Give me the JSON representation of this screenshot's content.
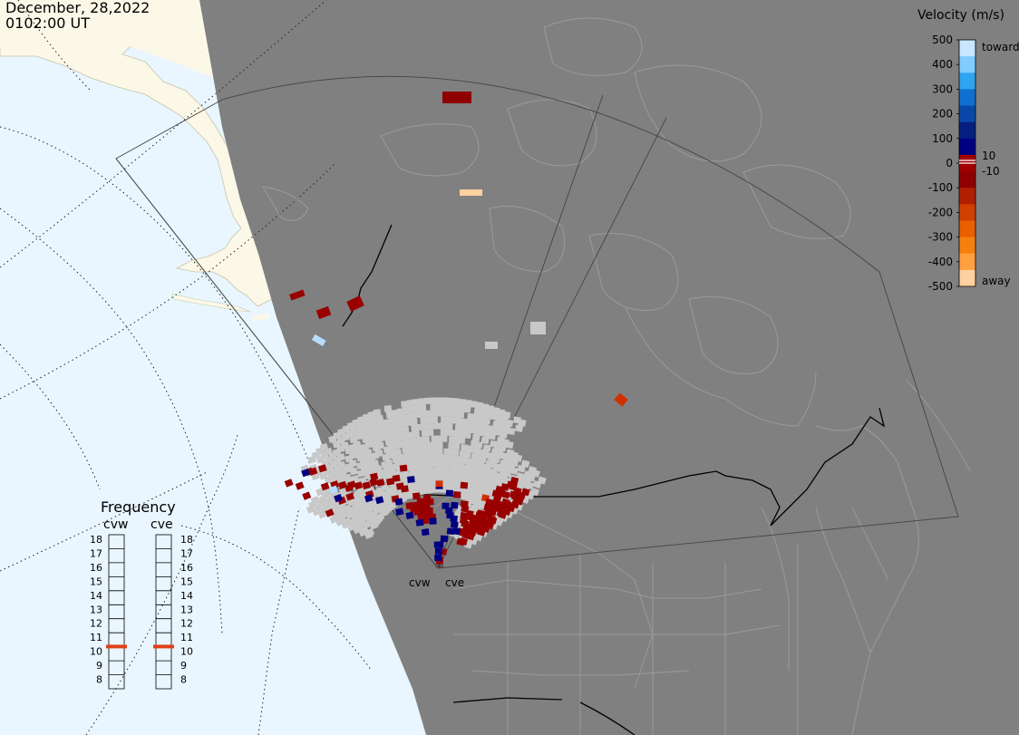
{
  "header": {
    "date": "December, 28,2022",
    "time": "0102:00 UT"
  },
  "colors": {
    "ocean": "#e9f6ff",
    "land_day": "#fbf8e8",
    "night": "#808080",
    "boundary": "#9a9a9a",
    "fov": "#555555",
    "ground_scatter": "#c8c8c8",
    "freq_marker": "#e0401a"
  },
  "velocity_scale": {
    "title": "Velocity (m/s)",
    "ticks": [
      "500",
      "400",
      "300",
      "200",
      "100",
      "0",
      "-100",
      "-200",
      "-300",
      "-400",
      "-500"
    ],
    "toward_label": "toward",
    "away_label": "away",
    "pos_threshold": "10",
    "neg_threshold": "-10",
    "colors": [
      "#c8e6ff",
      "#80ccff",
      "#2fa4ef",
      "#1070d0",
      "#0a48a8",
      "#06207f",
      "#000080",
      "#a00000",
      "#8f0000",
      "#b02000",
      "#d04000",
      "#e86000",
      "#f48010",
      "#ffa040",
      "#ffd0a0"
    ]
  },
  "frequency": {
    "title": "Frequency",
    "radars": [
      "cvw",
      "cve"
    ],
    "ticks": [
      "18",
      "17",
      "16",
      "15",
      "14",
      "13",
      "12",
      "11",
      "10",
      "9",
      "8"
    ],
    "values_mhz": [
      10.8,
      10.8
    ]
  },
  "radar_sites": [
    "cvw",
    "cve"
  ],
  "velocity_cells": {
    "neg": [
      [
        -62,
        -138
      ],
      [
        -60,
        -148
      ],
      [
        -61,
        -158
      ],
      [
        -54,
        -148
      ],
      [
        -53,
        -145
      ],
      [
        -50,
        -140
      ],
      [
        -64,
        -112
      ],
      [
        -55,
        -128
      ],
      [
        -52,
        -122
      ],
      [
        -50,
        -116
      ],
      [
        -47,
        -110
      ],
      [
        -56,
        -108
      ],
      [
        -52,
        -104
      ],
      [
        -49,
        -110
      ],
      [
        -45,
        -105
      ],
      [
        -42,
        -100
      ],
      [
        -38,
        -98
      ],
      [
        -36,
        -102
      ],
      [
        -35,
        -94
      ],
      [
        -30,
        -90
      ],
      [
        -26,
        -82
      ],
      [
        -24,
        -78
      ],
      [
        -26,
        -62
      ],
      [
        -24,
        -58
      ],
      [
        -22,
        -54
      ],
      [
        -20,
        -60
      ],
      [
        -18,
        -56
      ],
      [
        -16,
        -52
      ],
      [
        -14,
        -48
      ],
      [
        -20,
        -48
      ],
      [
        -17,
        -44
      ],
      [
        -14,
        -60
      ],
      [
        -12,
        -56
      ],
      [
        -10,
        -64
      ],
      [
        -8,
        -60
      ],
      [
        -10,
        -52
      ],
      [
        -26,
        -90
      ],
      [
        -20,
        -96
      ],
      [
        -33,
        -74
      ],
      [
        -8,
        -46
      ],
      [
        -16,
        -62
      ],
      [
        -44,
        -92
      ],
      [
        -18,
        -68
      ],
      [
        24,
        -58
      ],
      [
        22,
        -62
      ],
      [
        26,
        -52
      ],
      [
        28,
        -48
      ],
      [
        30,
        -56
      ],
      [
        31,
        -46
      ],
      [
        33,
        -54
      ],
      [
        35,
        -44
      ],
      [
        37,
        -52
      ],
      [
        38,
        -42
      ],
      [
        39,
        -56
      ],
      [
        40,
        -48
      ],
      [
        41,
        -38
      ],
      [
        42,
        -52
      ],
      [
        42,
        -60
      ],
      [
        44,
        -44
      ],
      [
        44,
        -56
      ],
      [
        45,
        -50
      ],
      [
        46,
        -40
      ],
      [
        47,
        -58
      ],
      [
        36,
        -38
      ],
      [
        41,
        -30
      ],
      [
        44,
        -32
      ],
      [
        32,
        -38
      ],
      [
        38,
        -62
      ],
      [
        14,
        -68
      ],
      [
        17,
        -78
      ],
      [
        14,
        -14
      ],
      [
        7,
        -2
      ],
      [
        4,
        -6
      ]
    ],
    "far": [
      [
        -32,
        -222
      ]
    ],
    "pos": [
      [
        -55,
        -150
      ],
      [
        -56,
        -112
      ],
      [
        -46,
        -90
      ],
      [
        -42,
        -82
      ],
      [
        -36,
        -62
      ],
      [
        -32,
        -70
      ],
      [
        -30,
        -54
      ],
      [
        -24,
        -44
      ],
      [
        -22,
        -34
      ],
      [
        -8,
        -42
      ],
      [
        -18,
        -84
      ],
      [
        0,
        -74
      ],
      [
        8,
        -68
      ],
      [
        6,
        -56
      ],
      [
        10,
        -52
      ],
      [
        14,
        -58
      ],
      [
        12,
        -48
      ],
      [
        17,
        -46
      ],
      [
        20,
        -41
      ],
      [
        26,
        -36
      ],
      [
        -8,
        -8
      ],
      [
        -4,
        -20
      ],
      [
        -2,
        -14
      ],
      [
        10,
        -26
      ],
      [
        2,
        -20
      ],
      [
        18,
        -34
      ]
    ],
    "toward_high": [
      [
        -54,
        -120
      ]
    ],
    "strong_neg": [
      [
        0,
        -76
      ],
      [
        34,
        -76
      ]
    ],
    "away_high": [
      [
        0,
        -198
      ]
    ]
  }
}
